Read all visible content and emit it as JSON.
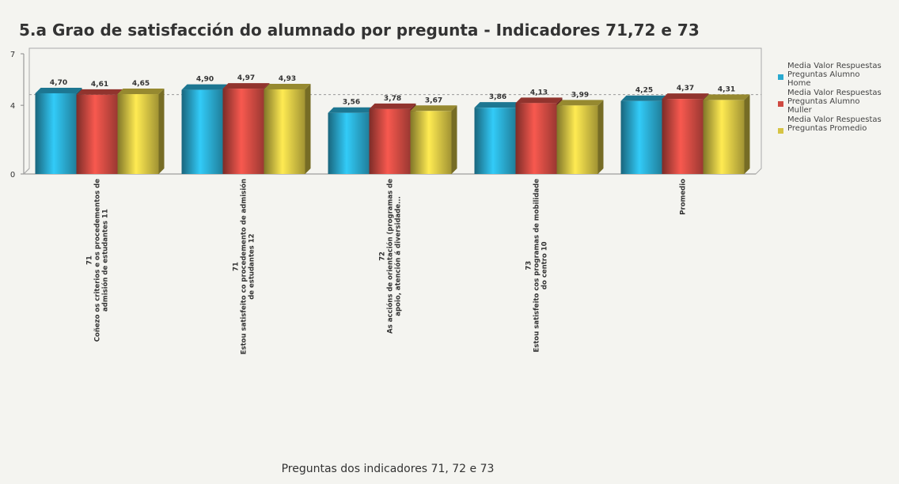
{
  "chart_data": {
    "type": "bar3d",
    "title": "5.a Grao de satisfacción do alumnado por pregunta - Indicadores 71,72 e 73",
    "x_label": "Preguntas dos indicadores 71, 72 e 73",
    "categories": [
      "71\nCoñezo os criterios e os procedementos de\nadmisión de estudantes 11",
      "71\nEstou satisfeito co procedemento de admisión\nde estudantes 12",
      "72\nAs accións de orientación (programas de\napoio, atención á diversidade...",
      "73\nEstou satisfeito cos programas de mobilidade\ndo centro 10",
      "Promedio"
    ],
    "series": [
      {
        "name": "Media Valor Respuestas Preguntas Alumno Home",
        "color": "#2aa9cf",
        "values": [
          4.7,
          4.9,
          3.56,
          3.86,
          4.25
        ],
        "value_labels": [
          "4,70",
          "4,90",
          "3,56",
          "3,86",
          "4,25"
        ]
      },
      {
        "name": "Media Valor Respuestas Preguntas Alumno Muller",
        "color": "#cf4a42",
        "values": [
          4.61,
          4.97,
          3.78,
          4.13,
          4.37
        ],
        "value_labels": [
          "4,61",
          "4,97",
          "3,78",
          "4,13",
          "4,37"
        ]
      },
      {
        "name": "Media Valor Respuestas Preguntas Promedio",
        "color": "#d6c444",
        "values": [
          4.65,
          4.93,
          3.67,
          3.99,
          4.31
        ],
        "value_labels": [
          "4,65",
          "4,93",
          "3,67",
          "3,99",
          "4,31"
        ]
      }
    ],
    "reference_line": 4.3,
    "ylim": [
      0,
      7
    ],
    "yticks": [
      0,
      4,
      7
    ],
    "legend": "right"
  }
}
